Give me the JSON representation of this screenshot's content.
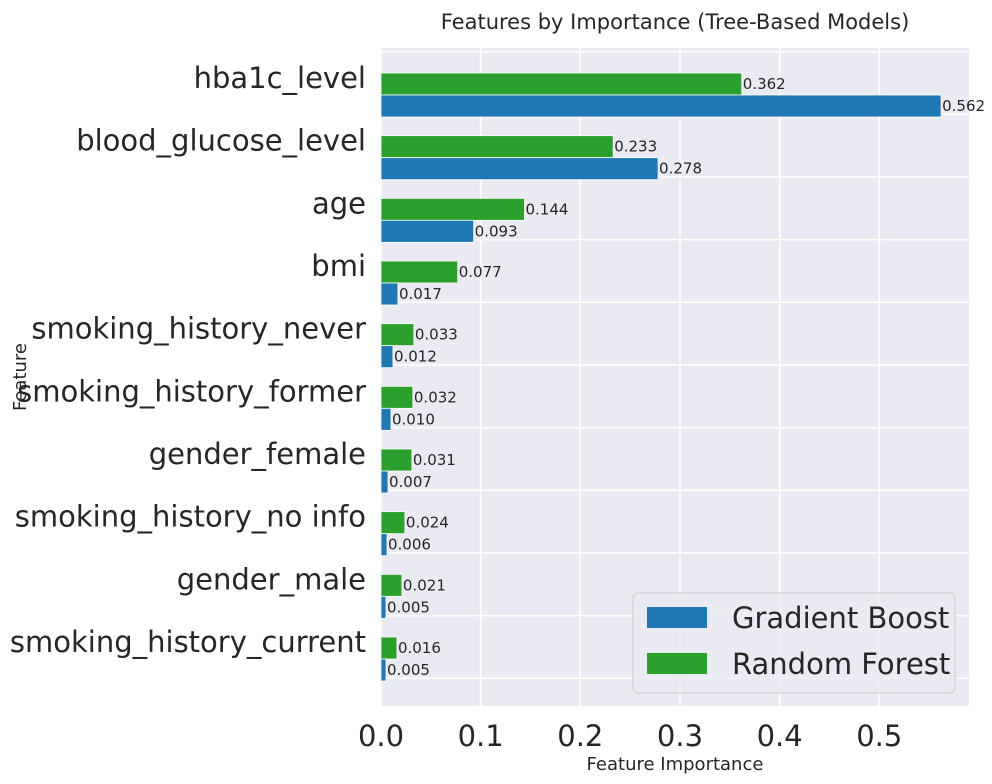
{
  "chart_data": {
    "type": "bar",
    "orientation": "horizontal",
    "title": "Features by Importance (Tree-Based Models)",
    "xlabel": "Feature Importance",
    "ylabel": "Feature",
    "xlim": [
      0,
      0.59
    ],
    "xticks": [
      0.0,
      0.1,
      0.2,
      0.3,
      0.4,
      0.5
    ],
    "xtick_labels": [
      "0.0",
      "0.1",
      "0.2",
      "0.3",
      "0.4",
      "0.5"
    ],
    "grid": true,
    "legend_position": "bottom-right",
    "categories": [
      "hba1c_level",
      "blood_glucose_level",
      "age",
      "bmi",
      "smoking_history_never",
      "smoking_history_former",
      "gender_female",
      "smoking_history_no info",
      "gender_male",
      "smoking_history_current"
    ],
    "series": [
      {
        "name": "Gradient Boost",
        "color": "#1f77b4",
        "values": [
          0.562,
          0.278,
          0.093,
          0.017,
          0.012,
          0.01,
          0.007,
          0.006,
          0.005,
          0.005
        ],
        "labels": [
          "0.562",
          "0.278",
          "0.093",
          "0.017",
          "0.012",
          "0.010",
          "0.007",
          "0.006",
          "0.005",
          "0.005"
        ]
      },
      {
        "name": "Random Forest",
        "color": "#2ca02c",
        "values": [
          0.362,
          0.233,
          0.144,
          0.077,
          0.033,
          0.032,
          0.031,
          0.024,
          0.021,
          0.016
        ],
        "labels": [
          "0.362",
          "0.233",
          "0.144",
          "0.077",
          "0.033",
          "0.032",
          "0.031",
          "0.024",
          "0.021",
          "0.016"
        ]
      }
    ]
  },
  "colors": {
    "plot_background": "#eaeaf2",
    "grid": "#ffffff",
    "text": "#262626"
  }
}
